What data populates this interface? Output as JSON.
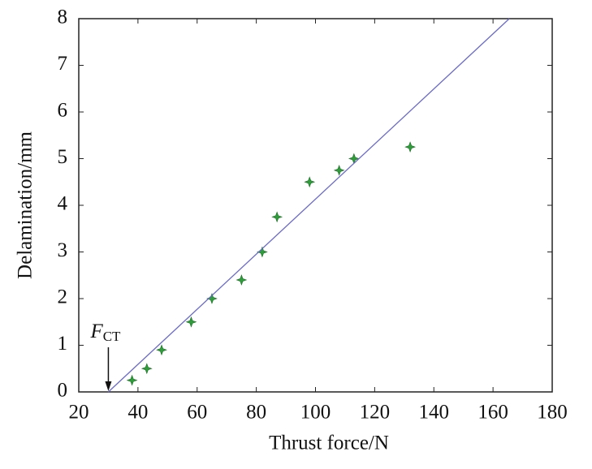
{
  "chart_data": {
    "type": "scatter",
    "x_label": "Thrust force/N",
    "y_label": "Delamination/mm",
    "xlim": [
      20,
      180
    ],
    "xticks": [
      20,
      40,
      60,
      80,
      100,
      120,
      140,
      160,
      180
    ],
    "ylim": [
      0,
      8
    ],
    "yticks": [
      0,
      1,
      2,
      3,
      4,
      5,
      6,
      7,
      8
    ],
    "grid": false,
    "series": [
      {
        "style": "markers",
        "color": "#2e9e3a",
        "x": [
          38,
          43,
          48,
          58,
          65,
          75,
          82,
          87,
          98,
          108,
          113,
          132
        ],
        "values": [
          0.25,
          0.5,
          0.9,
          1.5,
          2.0,
          2.4,
          3.0,
          3.75,
          4.5,
          4.75,
          5.0,
          5.25
        ]
      },
      {
        "style": "line",
        "color": "#6a6ac8",
        "x": [
          30,
          165.5
        ],
        "values": [
          0,
          8
        ]
      }
    ],
    "annotation": {
      "text": "F",
      "subscript": "CT",
      "x": 30
    }
  }
}
